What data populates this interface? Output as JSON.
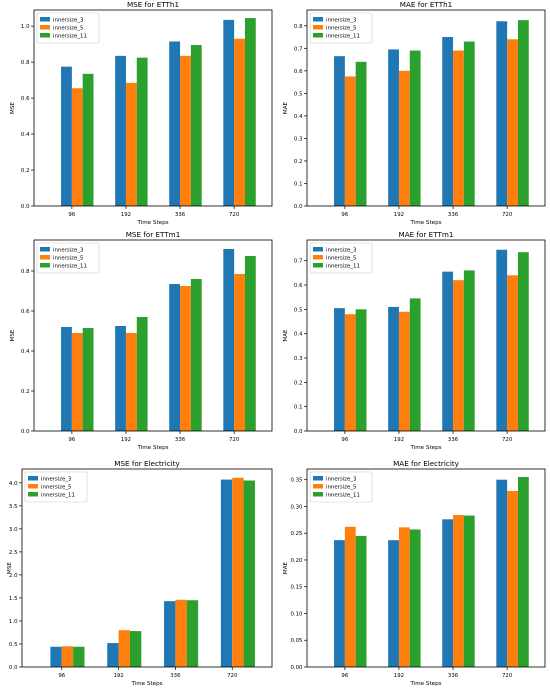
{
  "figure": {
    "series_names": [
      "innersize_3",
      "innersize_5",
      "innersize_11"
    ],
    "series_colors": [
      "#1f77b4",
      "#ff7f0e",
      "#2ca02c"
    ]
  },
  "chart_data": [
    {
      "type": "bar",
      "title": "MSE for ETTh1",
      "xlabel": "Time Steps",
      "ylabel": "MSE",
      "categories": [
        "96",
        "192",
        "336",
        "720"
      ],
      "ylim": [
        0,
        1.09
      ],
      "yticks": [
        0.0,
        0.2,
        0.4,
        0.6,
        0.8,
        1.0
      ],
      "ytick_labels": [
        "0.0",
        "0.2",
        "0.4",
        "0.6",
        "0.8",
        "1.0"
      ],
      "legend_loc": "top-left",
      "series": [
        {
          "name": "innersize_3",
          "values": [
            0.775,
            0.835,
            0.915,
            1.035
          ]
        },
        {
          "name": "innersize_5",
          "values": [
            0.655,
            0.685,
            0.835,
            0.93
          ]
        },
        {
          "name": "innersize_11",
          "values": [
            0.735,
            0.825,
            0.895,
            1.045
          ]
        }
      ]
    },
    {
      "type": "bar",
      "title": "MAE for ETTh1",
      "xlabel": "Time Steps",
      "ylabel": "MAE",
      "categories": [
        "96",
        "192",
        "336",
        "720"
      ],
      "ylim": [
        0,
        0.87
      ],
      "yticks": [
        0.0,
        0.1,
        0.2,
        0.3,
        0.4,
        0.5,
        0.6,
        0.7,
        0.8
      ],
      "ytick_labels": [
        "0.0",
        "0.1",
        "0.2",
        "0.3",
        "0.4",
        "0.5",
        "0.6",
        "0.7",
        "0.8"
      ],
      "legend_loc": "top-left",
      "series": [
        {
          "name": "innersize_3",
          "values": [
            0.665,
            0.695,
            0.75,
            0.82
          ]
        },
        {
          "name": "innersize_5",
          "values": [
            0.575,
            0.6,
            0.69,
            0.74
          ]
        },
        {
          "name": "innersize_11",
          "values": [
            0.64,
            0.69,
            0.73,
            0.825
          ]
        }
      ]
    },
    {
      "type": "bar",
      "title": "MSE for ETTm1",
      "xlabel": "Time Steps",
      "ylabel": "MSE",
      "categories": [
        "96",
        "192",
        "336",
        "720"
      ],
      "ylim": [
        0,
        0.955
      ],
      "yticks": [
        0.0,
        0.2,
        0.4,
        0.6,
        0.8
      ],
      "ytick_labels": [
        "0.0",
        "0.2",
        "0.4",
        "0.6",
        "0.8"
      ],
      "legend_loc": "top-left",
      "series": [
        {
          "name": "innersize_3",
          "values": [
            0.52,
            0.525,
            0.735,
            0.91
          ]
        },
        {
          "name": "innersize_5",
          "values": [
            0.49,
            0.49,
            0.725,
            0.785
          ]
        },
        {
          "name": "innersize_11",
          "values": [
            0.515,
            0.57,
            0.76,
            0.875
          ]
        }
      ]
    },
    {
      "type": "bar",
      "title": "MAE for ETTm1",
      "xlabel": "Time Steps",
      "ylabel": "MAE",
      "categories": [
        "96",
        "192",
        "336",
        "720"
      ],
      "ylim": [
        0,
        0.785
      ],
      "yticks": [
        0.0,
        0.1,
        0.2,
        0.3,
        0.4,
        0.5,
        0.6,
        0.7
      ],
      "ytick_labels": [
        "0.0",
        "0.1",
        "0.2",
        "0.3",
        "0.4",
        "0.5",
        "0.6",
        "0.7"
      ],
      "legend_loc": "top-left",
      "series": [
        {
          "name": "innersize_3",
          "values": [
            0.505,
            0.51,
            0.655,
            0.745
          ]
        },
        {
          "name": "innersize_5",
          "values": [
            0.48,
            0.49,
            0.62,
            0.64
          ]
        },
        {
          "name": "innersize_11",
          "values": [
            0.5,
            0.545,
            0.66,
            0.735
          ]
        }
      ]
    },
    {
      "type": "bar",
      "title": "MSE for Electricity",
      "xlabel": "Time Steps",
      "ylabel": "MSE",
      "categories": [
        "96",
        "192",
        "336",
        "720"
      ],
      "ylim": [
        0,
        4.3
      ],
      "yticks": [
        0.0,
        0.5,
        1.0,
        1.5,
        2.0,
        2.5,
        3.0,
        3.5,
        4.0
      ],
      "ytick_labels": [
        "0.0",
        "0.5",
        "1.0",
        "1.5",
        "2.0",
        "2.5",
        "3.0",
        "3.5",
        "4.0"
      ],
      "legend_loc": "top-left",
      "series": [
        {
          "name": "innersize_3",
          "values": [
            0.44,
            0.52,
            1.43,
            4.07
          ]
        },
        {
          "name": "innersize_5",
          "values": [
            0.45,
            0.8,
            1.46,
            4.11
          ]
        },
        {
          "name": "innersize_11",
          "values": [
            0.44,
            0.78,
            1.45,
            4.05
          ]
        }
      ]
    },
    {
      "type": "bar",
      "title": "MAE for Electricity",
      "xlabel": "Time Steps",
      "ylabel": "MAE",
      "categories": [
        "96",
        "192",
        "336",
        "720"
      ],
      "ylim": [
        0,
        0.37
      ],
      "yticks": [
        0.0,
        0.05,
        0.1,
        0.15,
        0.2,
        0.25,
        0.3,
        0.35
      ],
      "ytick_labels": [
        "0.00",
        "0.05",
        "0.10",
        "0.15",
        "0.20",
        "0.25",
        "0.30",
        "0.35"
      ],
      "legend_loc": "top-left",
      "series": [
        {
          "name": "innersize_3",
          "values": [
            0.237,
            0.237,
            0.276,
            0.35
          ]
        },
        {
          "name": "innersize_5",
          "values": [
            0.262,
            0.261,
            0.284,
            0.329
          ]
        },
        {
          "name": "innersize_11",
          "values": [
            0.245,
            0.257,
            0.283,
            0.355
          ]
        }
      ]
    }
  ]
}
